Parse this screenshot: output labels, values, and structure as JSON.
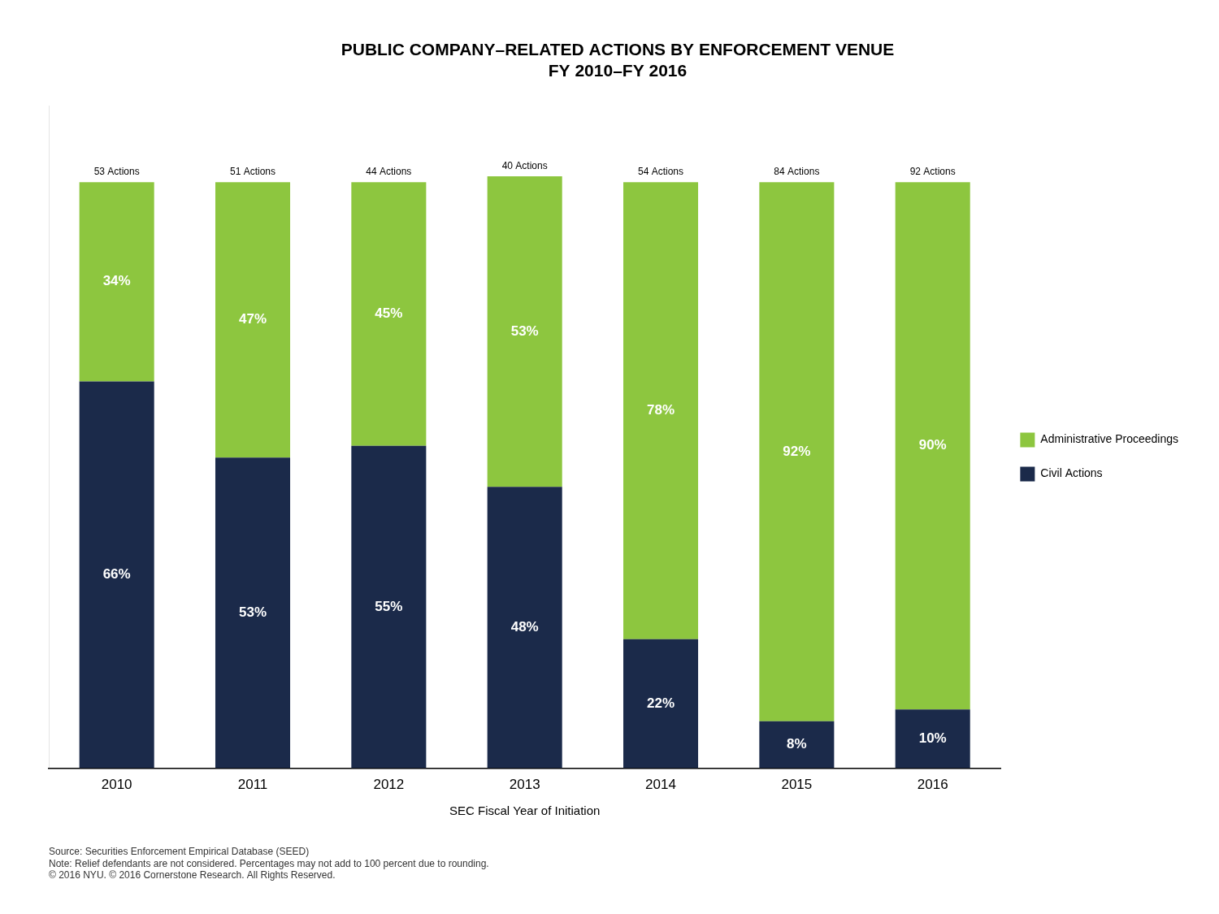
{
  "chart_data": {
    "type": "bar",
    "stacked": true,
    "title": "PUBLIC COMPANY–RELATED ACTIONS BY ENFORCEMENT VENUE",
    "subtitle": "FY 2010–FY 2016",
    "x_label": "SEC Fiscal Year of Initiation",
    "categories": [
      "2010",
      "2011",
      "2012",
      "2013",
      "2014",
      "2015",
      "2016"
    ],
    "series": [
      {
        "name": "Civil Actions",
        "color": "#1b2a4a",
        "values": [
          66,
          53,
          55,
          48,
          22,
          8,
          10
        ],
        "value_labels": [
          "66%",
          "53%",
          "55%",
          "48%",
          "22%",
          "8%",
          "10%"
        ]
      },
      {
        "name": "Administrative Proceedings",
        "color": "#8dc63f",
        "values": [
          34,
          47,
          45,
          53,
          78,
          92,
          90
        ],
        "value_labels": [
          "34%",
          "47%",
          "45%",
          "53%",
          "78%",
          "92%",
          "90%"
        ]
      }
    ],
    "annotations": [
      "53 Actions",
      "51 Actions",
      "44 Actions",
      "40 Actions",
      "54 Actions",
      "84 Actions",
      "92 Actions"
    ],
    "footnotes": [
      "Source: Securities Enforcement Empirical Database (SEED)",
      "Note: Relief defendants are not considered. Percentages may not add to 100 percent due to rounding.",
      "© 2016 NYU. © 2016 Cornerstone Research. All Rights Reserved."
    ],
    "ylim": [
      0,
      113
    ],
    "data_labels": true,
    "tick_labels": "x",
    "grid": false,
    "legend": "right"
  }
}
